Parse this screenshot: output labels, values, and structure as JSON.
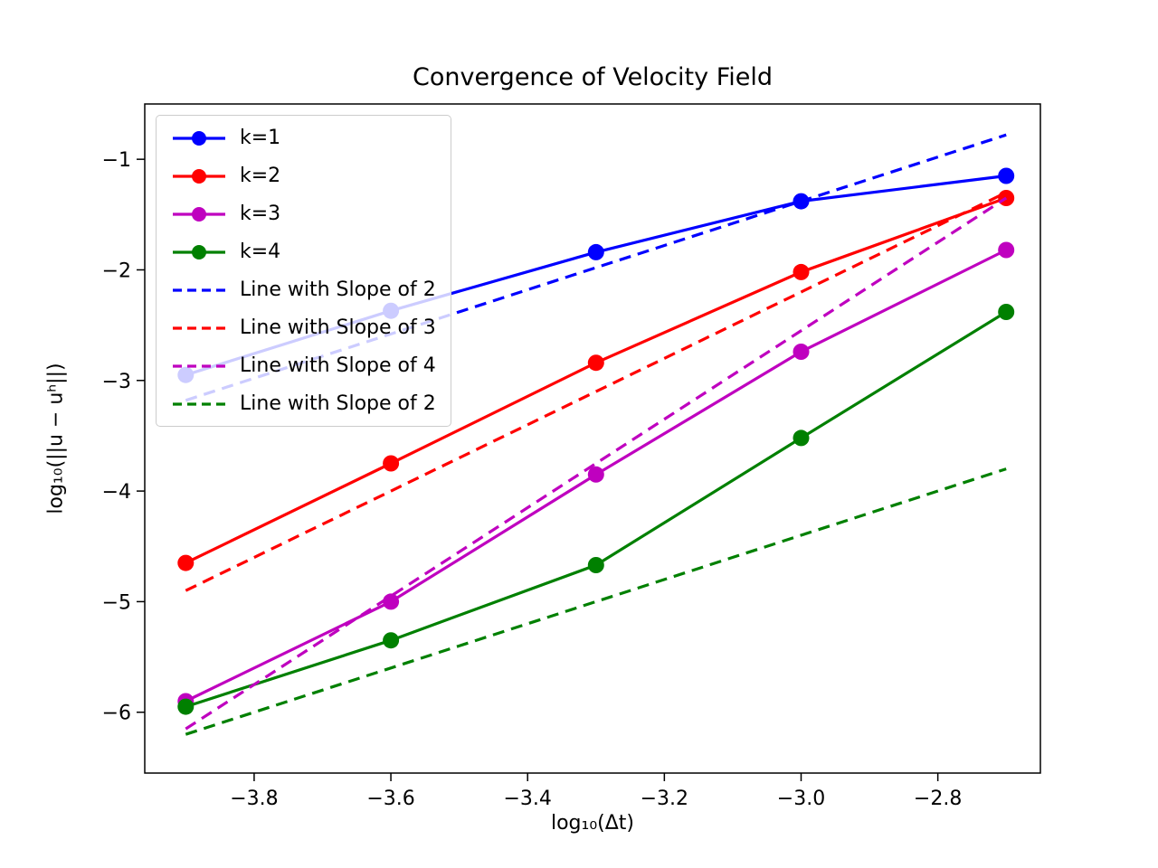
{
  "chart_data": {
    "type": "line",
    "title": "Convergence of Velocity Field",
    "xlabel": "log₁₀(Δt)",
    "ylabel": "log₁₀(||u − uʰ||)",
    "xlim": [
      -3.96,
      -2.65
    ],
    "ylim": [
      -6.55,
      -0.5
    ],
    "x_ticks": [
      -3.8,
      -3.6,
      -3.4,
      -3.2,
      -3.0,
      -2.8
    ],
    "x_tick_labels": [
      "−3.8",
      "−3.6",
      "−3.4",
      "−3.2",
      "−3.0",
      "−2.8"
    ],
    "y_ticks": [
      -1,
      -2,
      -3,
      -4,
      -5,
      -6
    ],
    "y_tick_labels": [
      "−1",
      "−2",
      "−3",
      "−4",
      "−5",
      "−6"
    ],
    "grid": false,
    "legend_position": "upper left",
    "series": [
      {
        "name": "k=1",
        "style": "solid",
        "marker": "circle",
        "color": "#0000ff",
        "x": [
          -3.9,
          -3.6,
          -3.3,
          -3.0,
          -2.7
        ],
        "y": [
          -2.95,
          -2.37,
          -1.84,
          -1.38,
          -1.15
        ]
      },
      {
        "name": "k=2",
        "style": "solid",
        "marker": "circle",
        "color": "#ff0000",
        "x": [
          -3.9,
          -3.6,
          -3.3,
          -3.0,
          -2.7
        ],
        "y": [
          -4.65,
          -3.75,
          -2.84,
          -2.02,
          -1.35
        ]
      },
      {
        "name": "k=3",
        "style": "solid",
        "marker": "circle",
        "color": "#bf00bf",
        "x": [
          -3.9,
          -3.6,
          -3.3,
          -3.0,
          -2.7
        ],
        "y": [
          -5.9,
          -5.0,
          -3.85,
          -2.74,
          -1.82
        ]
      },
      {
        "name": "k=4",
        "style": "solid",
        "marker": "circle",
        "color": "#008000",
        "x": [
          -3.9,
          -3.6,
          -3.3,
          -3.0,
          -2.7
        ],
        "y": [
          -5.95,
          -5.35,
          -4.67,
          -3.52,
          -2.38
        ]
      },
      {
        "name": "Line with Slope of 2",
        "style": "dashed",
        "marker": "none",
        "color": "#0000ff",
        "slope": 2,
        "x": [
          -3.9,
          -2.7
        ],
        "y": [
          -3.18,
          -0.78
        ]
      },
      {
        "name": "Line with Slope of 3",
        "style": "dashed",
        "marker": "none",
        "color": "#ff0000",
        "slope": 3,
        "x": [
          -3.9,
          -2.7
        ],
        "y": [
          -4.9,
          -1.3
        ]
      },
      {
        "name": "Line with Slope of 4",
        "style": "dashed",
        "marker": "none",
        "color": "#bf00bf",
        "slope": 4,
        "x": [
          -3.9,
          -2.7
        ],
        "y": [
          -6.15,
          -1.35
        ]
      },
      {
        "name": "Line with Slope of 2",
        "style": "dashed",
        "marker": "none",
        "color": "#008000",
        "slope": 2,
        "x": [
          -3.9,
          -2.7
        ],
        "y": [
          -6.2,
          -3.8
        ]
      }
    ]
  }
}
